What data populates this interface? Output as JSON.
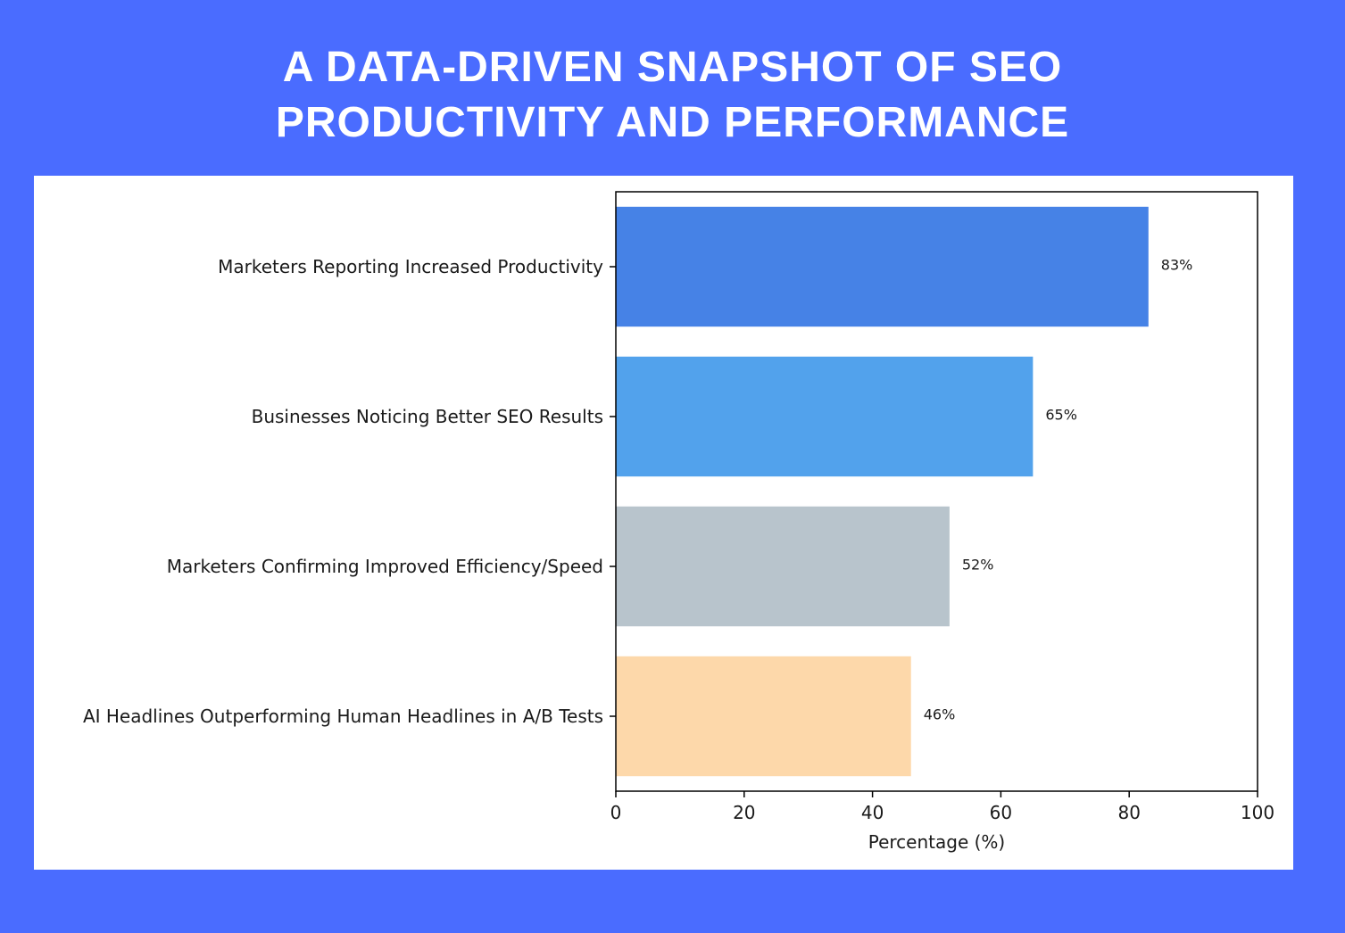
{
  "header": {
    "title_line1": "A DATA-DRIVEN SNAPSHOT OF SEO",
    "title_line2": "PRODUCTIVITY AND PERFORMANCE"
  },
  "colors": {
    "background": "#4a6cff",
    "panel": "#ffffff",
    "title_text": "#ffffff"
  },
  "chart_data": {
    "type": "bar",
    "orientation": "horizontal",
    "categories": [
      "Marketers Reporting Increased Productivity",
      "Businesses Noticing Better SEO Results",
      "Marketers Confirming Improved Efficiency/Speed",
      "AI Headlines Outperforming Human Headlines in A/B Tests"
    ],
    "values": [
      83,
      65,
      52,
      46
    ],
    "value_labels": [
      "83%",
      "65%",
      "52%",
      "46%"
    ],
    "bar_colors": [
      "#4682e6",
      "#52a2ec",
      "#b8c4cc",
      "#fdd8aa"
    ],
    "xlabel": "Percentage (%)",
    "ylabel": "",
    "xlim": [
      0,
      100
    ],
    "xticks": [
      0,
      20,
      40,
      60,
      80,
      100
    ],
    "xtick_labels": [
      "0",
      "20",
      "40",
      "60",
      "80",
      "100"
    ],
    "grid": false,
    "legend": "none"
  }
}
